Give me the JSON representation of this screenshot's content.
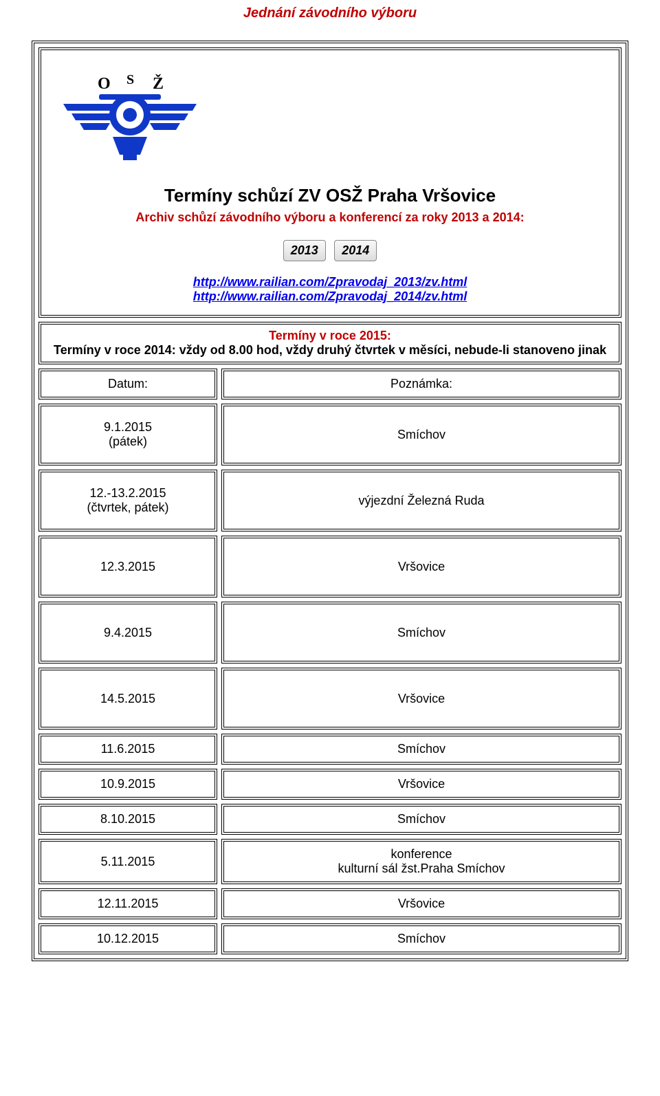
{
  "colors": {
    "heading": "#c00000",
    "logo_blue": "#1038c8",
    "logo_text": "#000000",
    "link": "#0000ee"
  },
  "page_title": "Jednání závodního výboru",
  "main_heading": "Termíny schůzí ZV OSŽ Praha Vršovice",
  "archive_line": "Archiv schůzí závodního výboru a konferencí za roky 2013 a 2014:",
  "year_buttons": {
    "y2013": "2013",
    "y2014": "2014"
  },
  "links": {
    "l2013": "http://www.railian.com/Zpravodaj_2013/zv.html",
    "l2014": "http://www.railian.com/Zpravodaj_2014/zv.html"
  },
  "subheader": {
    "line1": "Termíny v roce 2015:",
    "line2": "Termíny v roce 2014: vždy od 8.00 hod, vždy druhý čtvrtek v měsíci, nebude-li stanoveno jinak"
  },
  "header_row": {
    "left": "Datum:",
    "right": "Poznámka:"
  },
  "rows": [
    {
      "date": "9.1.2015",
      "sub": "(pátek)",
      "note": "Smíchov",
      "tall": true
    },
    {
      "date": "12.-13.2.2015",
      "sub": "(čtvrtek, pátek)",
      "note": "výjezdní Železná Ruda",
      "tall": true
    },
    {
      "date": "12.3.2015",
      "sub": "",
      "note": "Vršovice",
      "tall": true
    },
    {
      "date": "9.4.2015",
      "sub": "",
      "note": "Smíchov",
      "tall": true
    },
    {
      "date": "14.5.2015",
      "sub": "",
      "note": "Vršovice",
      "tall": true
    },
    {
      "date": "11.6.2015",
      "sub": "",
      "note": "Smíchov",
      "tall": false
    },
    {
      "date": "10.9.2015",
      "sub": "",
      "note": "Vršovice",
      "tall": false
    },
    {
      "date": "8.10.2015",
      "sub": "",
      "note": "Smíchov",
      "tall": false
    },
    {
      "date": "5.11.2015",
      "sub": "",
      "note": "konference\nkulturní sál žst.Praha Smíchov",
      "tall": false,
      "multiline": true
    },
    {
      "date": "12.11.2015",
      "sub": "",
      "note": "Vršovice",
      "tall": false
    },
    {
      "date": "10.12.2015",
      "sub": "",
      "note": "Smíchov",
      "tall": false
    }
  ],
  "logo": {
    "letter_o": "O",
    "letter_s": "S",
    "letter_z": "Ž"
  }
}
